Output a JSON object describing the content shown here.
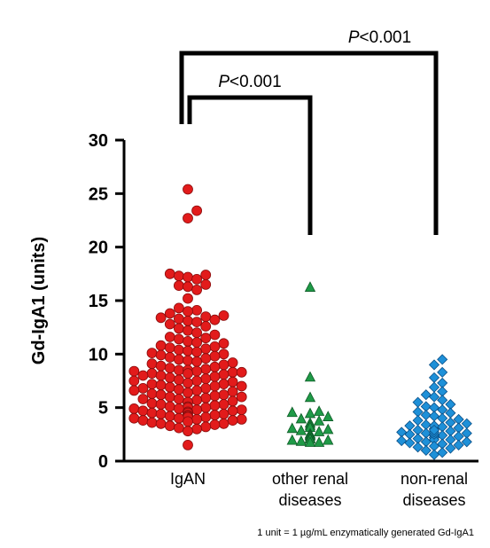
{
  "chart_data": {
    "type": "scatter",
    "ylabel": "Gd-IgA1 (units)",
    "ylim": [
      0,
      30
    ],
    "yticks": [
      "0",
      "5",
      "10",
      "15",
      "20",
      "25",
      "30"
    ],
    "categories": [
      "IgAN",
      "other renal\ndiseases",
      "non-renal\ndiseases"
    ],
    "series": [
      {
        "color": "#e21b1b",
        "stroke": "#8a0d0d",
        "marker": "circle",
        "values": [
          25.4,
          23.4,
          22.7,
          17.5,
          17.4,
          17.3,
          17.2,
          17.0,
          16.5,
          16.4,
          16.3,
          16.0,
          15.2,
          14.3,
          14.1,
          14.0,
          13.8,
          13.6,
          13.5,
          13.4,
          13.3,
          13.2,
          13.1,
          13.0,
          12.8,
          12.6,
          12.4,
          12.2,
          12.0,
          11.8,
          11.6,
          11.5,
          11.4,
          11.2,
          11.1,
          11.0,
          10.8,
          10.7,
          10.6,
          10.5,
          10.4,
          10.3,
          10.2,
          10.1,
          10.0,
          9.9,
          9.8,
          9.7,
          9.6,
          9.5,
          9.4,
          9.3,
          9.2,
          9.1,
          9.0,
          8.9,
          8.8,
          8.7,
          8.6,
          8.5,
          8.5,
          8.4,
          8.4,
          8.3,
          8.3,
          8.2,
          8.2,
          8.1,
          8.0,
          8.0,
          7.9,
          7.8,
          7.7,
          7.6,
          7.5,
          7.5,
          7.4,
          7.3,
          7.2,
          7.2,
          7.1,
          7.0,
          7.0,
          6.9,
          6.8,
          6.8,
          6.7,
          6.6,
          6.6,
          6.5,
          6.4,
          6.3,
          6.2,
          6.2,
          6.1,
          6.0,
          6.0,
          5.9,
          5.8,
          5.8,
          5.7,
          5.6,
          5.5,
          5.5,
          5.4,
          5.3,
          5.3,
          5.2,
          5.1,
          5.1,
          5.0,
          5.0,
          4.9,
          4.9,
          4.8,
          4.8,
          4.7,
          4.7,
          4.6,
          4.6,
          4.5,
          4.5,
          4.4,
          4.4,
          4.3,
          4.3,
          4.2,
          4.2,
          4.1,
          4.1,
          4.0,
          4.0,
          3.9,
          3.9,
          3.8,
          3.8,
          3.7,
          3.6,
          3.5,
          3.5,
          3.4,
          3.3,
          3.2,
          3.1,
          3.0,
          2.8,
          1.5
        ]
      },
      {
        "color": "#1f9a47",
        "stroke": "#0d5a26",
        "marker": "triangle",
        "values": [
          16.3,
          7.9,
          6.0,
          4.7,
          4.6,
          4.5,
          4.2,
          4.0,
          3.8,
          3.6,
          3.4,
          3.2,
          3.1,
          3.0,
          2.9,
          2.8,
          2.6,
          2.5,
          2.4,
          2.2,
          2.1,
          2.0,
          2.0,
          1.9,
          1.8,
          1.8
        ]
      },
      {
        "color": "#1e90d8",
        "stroke": "#0b4f86",
        "marker": "diamond",
        "values": [
          9.5,
          9.0,
          8.3,
          7.8,
          7.3,
          6.9,
          6.5,
          6.2,
          6.0,
          5.7,
          5.5,
          5.3,
          5.1,
          5.0,
          4.8,
          4.6,
          4.5,
          4.3,
          4.2,
          4.0,
          3.9,
          3.8,
          3.6,
          3.5,
          3.4,
          3.3,
          3.2,
          3.1,
          3.0,
          3.0,
          2.9,
          2.8,
          2.7,
          2.6,
          2.6,
          2.5,
          2.4,
          2.4,
          2.3,
          2.2,
          2.2,
          2.1,
          2.0,
          2.0,
          1.9,
          1.8,
          1.7,
          1.6,
          1.5,
          1.4,
          1.3,
          1.2,
          1.0,
          0.8,
          0.6,
          2.5,
          2.7,
          3.3,
          1.8,
          2.9
        ]
      }
    ],
    "annotations": [
      {
        "prefix": "P",
        "text": "<0.001",
        "from": 0,
        "to": 1,
        "level": "inner"
      },
      {
        "prefix": "P",
        "text": "<0.001",
        "from": 0,
        "to": 2,
        "level": "outer"
      }
    ],
    "footnote": "1 unit  = 1 µg/mL enzymatically generated Gd-IgA1"
  }
}
